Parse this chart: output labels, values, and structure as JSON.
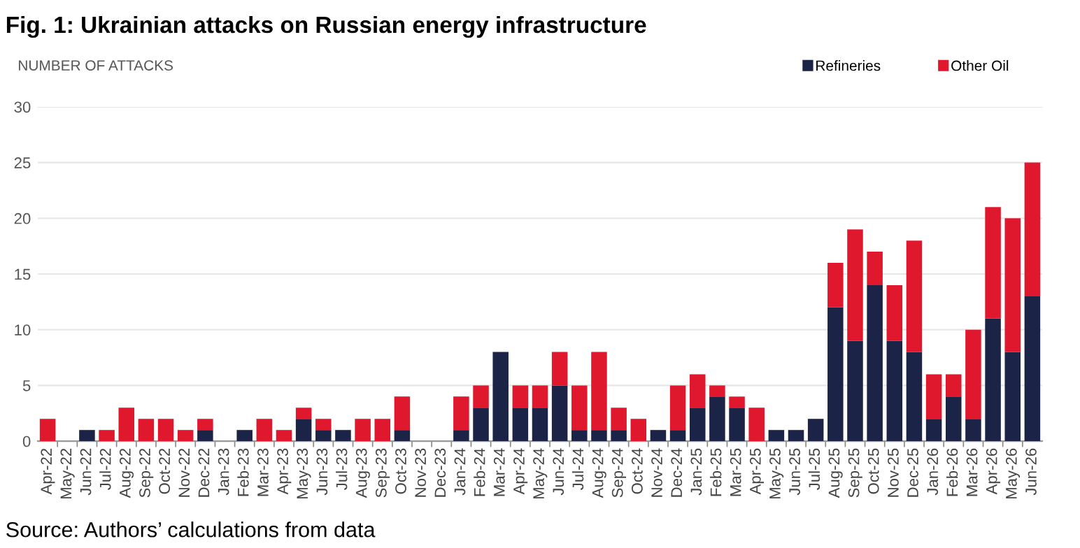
{
  "chart_data": {
    "type": "bar",
    "stacked": true,
    "title": "Fig. 1: Ukrainian attacks on Russian energy infrastructure",
    "ylabel": "NUMBER OF ATTACKS",
    "annotations": [
      "Source: Authors’ calculations from data"
    ],
    "categories": [
      "Apr-22",
      "May-22",
      "Jun-22",
      "Jul-22",
      "Aug-22",
      "Sep-22",
      "Oct-22",
      "Nov-22",
      "Dec-22",
      "Jan-23",
      "Feb-23",
      "Mar-23",
      "Apr-23",
      "May-23",
      "Jun-23",
      "Jul-23",
      "Aug-23",
      "Sep-23",
      "Oct-23",
      "Nov-23",
      "Dec-23",
      "Jan-24",
      "Feb-24",
      "Mar-24",
      "Apr-24",
      "May-24",
      "Jun-24",
      "Jul-24",
      "Aug-24",
      "Sep-24",
      "Oct-24",
      "Nov-24",
      "Dec-24",
      "Jan-25",
      "Feb-25",
      "Mar-25",
      "Apr-25",
      "May-25",
      "Jun-25",
      "Jul-25",
      "Aug-25",
      "Sep-25",
      "Oct-25",
      "Nov-25",
      "Dec-25",
      "Jan-26",
      "Feb-26",
      "Mar-26",
      "Apr-26",
      "May-26",
      "Jun-26"
    ],
    "series": [
      {
        "name": "Refineries",
        "color": "#1b2346",
        "values": [
          0,
          0,
          1,
          0,
          0,
          0,
          0,
          0,
          1,
          0,
          1,
          0,
          0,
          2,
          1,
          1,
          0,
          0,
          1,
          0,
          0,
          1,
          3,
          8,
          3,
          3,
          5,
          1,
          1,
          1,
          0,
          1,
          1,
          3,
          4,
          3,
          0,
          1,
          1,
          2,
          12,
          9,
          14,
          9,
          8,
          2,
          4,
          2,
          11,
          8,
          13
        ]
      },
      {
        "name": "Other Oil",
        "color": "#e0182d",
        "values": [
          2,
          0,
          0,
          1,
          3,
          2,
          2,
          1,
          1,
          0,
          0,
          2,
          1,
          1,
          1,
          0,
          2,
          2,
          3,
          0,
          0,
          3,
          2,
          0,
          2,
          2,
          3,
          4,
          7,
          2,
          2,
          0,
          4,
          3,
          1,
          1,
          3,
          0,
          0,
          0,
          4,
          10,
          3,
          5,
          10,
          4,
          2,
          8,
          10,
          12,
          12
        ]
      }
    ],
    "ylim": [
      0,
      30
    ],
    "yticks": [
      0,
      5,
      10,
      15,
      20,
      25,
      30
    ],
    "grid": "y",
    "legend": "top right"
  }
}
